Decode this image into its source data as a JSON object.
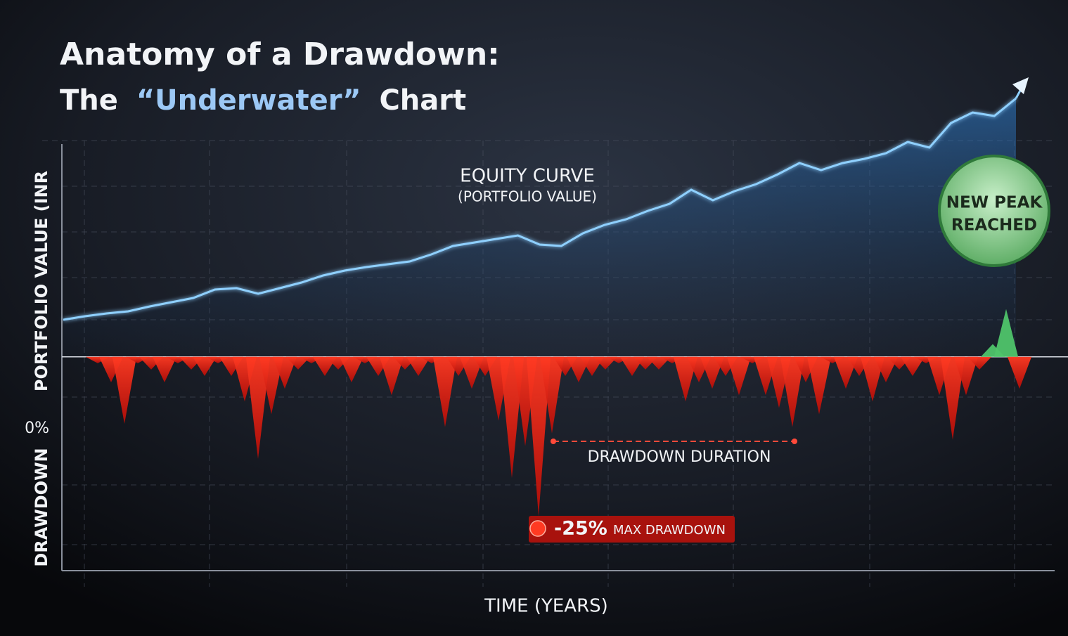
{
  "chart_data": [
    {
      "type": "line",
      "title": "Anatomy of a Drawdown:",
      "subtitle": [
        "The",
        "“Underwater”",
        "Chart"
      ],
      "y_label": "PORTFOLIO VALUE (INR",
      "x_label": "TIME (YEARS)",
      "annotation": [
        "EQUITY CURVE",
        "(PORTFOLIO VALUE)"
      ],
      "new_peak": [
        "NEW PEAK",
        "REACHED"
      ],
      "color": "#8fd0ff",
      "ylim": [
        0,
        420
      ],
      "values": [
        53,
        58,
        62,
        65,
        72,
        78,
        84,
        96,
        98,
        90,
        98,
        106,
        116,
        123,
        128,
        132,
        136,
        146,
        158,
        163,
        168,
        173,
        160,
        158,
        176,
        188,
        196,
        208,
        218,
        238,
        223,
        236,
        246,
        260,
        276,
        266,
        276,
        282,
        290,
        306,
        298,
        333,
        348,
        343,
        368
      ]
    },
    {
      "type": "area",
      "y_label": "DRAWDOWN",
      "color": "#ff2a1a",
      "positive_color": "#4fc46a",
      "ylim": [
        -30,
        10
      ],
      "yticks": [
        {
          "value": 0,
          "label": "0%"
        }
      ],
      "duration_label": "DRAWDOWN DURATION",
      "max_drawdown": {
        "value": -25,
        "label": "-25%",
        "text": "MAX DRAWDOWN"
      },
      "values": [
        0,
        -1,
        -4,
        -10.5,
        -1,
        -2,
        -4,
        -1,
        -2,
        -3,
        -1,
        -3,
        -7,
        -16,
        -9,
        -5,
        -2,
        -1,
        -3,
        -2,
        -4,
        -1,
        -3,
        -6,
        -2,
        -3,
        -1,
        -11,
        -3,
        -5,
        -3,
        -10,
        -19,
        -14,
        -25,
        -12,
        -3,
        -4,
        -3,
        -2,
        -1,
        -3,
        -2,
        -2,
        -1,
        -7,
        -4,
        -5,
        -3,
        -6,
        -1,
        -6,
        -8,
        -11,
        -4,
        -9,
        -1,
        -5,
        -3,
        -7,
        -4,
        -2,
        -3,
        -1,
        -6,
        -13,
        -6,
        -2,
        2,
        7.5,
        -5
      ]
    }
  ]
}
